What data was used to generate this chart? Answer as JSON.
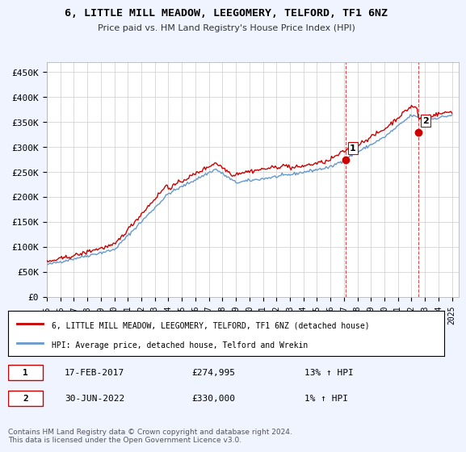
{
  "title": "6, LITTLE MILL MEADOW, LEEGOMERY, TELFORD, TF1 6NZ",
  "subtitle": "Price paid vs. HM Land Registry's House Price Index (HPI)",
  "ylabel_ticks": [
    "£0",
    "£50K",
    "£100K",
    "£150K",
    "£200K",
    "£250K",
    "£300K",
    "£350K",
    "£400K",
    "£450K"
  ],
  "ytick_values": [
    0,
    50000,
    100000,
    150000,
    200000,
    250000,
    300000,
    350000,
    400000,
    450000
  ],
  "ylim": [
    0,
    470000
  ],
  "xlim_start": 1995.0,
  "xlim_end": 2025.5,
  "background_color": "#f0f4ff",
  "plot_bg_color": "#ffffff",
  "legend_entry1": "6, LITTLE MILL MEADOW, LEEGOMERY, TELFORD, TF1 6NZ (detached house)",
  "legend_entry2": "HPI: Average price, detached house, Telford and Wrekin",
  "sale1_date": "17-FEB-2017",
  "sale1_price": "£274,995",
  "sale1_hpi": "13% ↑ HPI",
  "sale1_x": 2017.12,
  "sale1_y": 274995,
  "sale2_date": "30-JUN-2022",
  "sale2_price": "£330,000",
  "sale2_hpi": "1% ↑ HPI",
  "sale2_x": 2022.5,
  "sale2_y": 330000,
  "line_color_red": "#cc0000",
  "line_color_blue": "#6699cc",
  "vline_color": "#cc0000",
  "footer": "Contains HM Land Registry data © Crown copyright and database right 2024.\nThis data is licensed under the Open Government Licence v3.0.",
  "x_ticks": [
    1995,
    1996,
    1997,
    1998,
    1999,
    2000,
    2001,
    2002,
    2003,
    2004,
    2005,
    2006,
    2007,
    2008,
    2009,
    2010,
    2011,
    2012,
    2013,
    2014,
    2015,
    2016,
    2017,
    2018,
    2019,
    2020,
    2021,
    2022,
    2023,
    2024,
    2025
  ]
}
